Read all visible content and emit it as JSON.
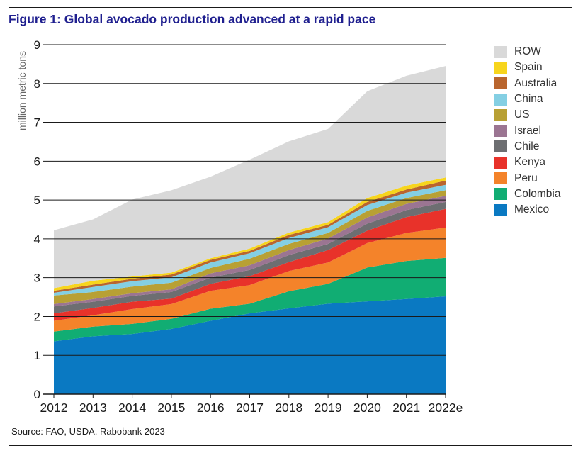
{
  "title": "Figure 1: Global avocado production advanced at a rapid pace",
  "source": "Source: FAO, USDA, Rabobank 2023",
  "chart_data": {
    "type": "area",
    "stacked": true,
    "ylabel": "million metric tons",
    "xlabel": "",
    "ylim": [
      0,
      9
    ],
    "yticks": [
      0,
      1,
      2,
      3,
      4,
      5,
      6,
      7,
      8,
      9
    ],
    "grid": "horizontal",
    "legend_position": "right",
    "x": [
      "2012",
      "2013",
      "2014",
      "2015",
      "2016",
      "2017",
      "2018",
      "2019",
      "2020",
      "2021",
      "2022e"
    ],
    "series": [
      {
        "name": "Mexico",
        "color": "#0a79c2",
        "values": [
          1.36,
          1.49,
          1.55,
          1.68,
          1.89,
          2.08,
          2.21,
          2.33,
          2.39,
          2.45,
          2.52
        ]
      },
      {
        "name": "Colombia",
        "color": "#11ad73",
        "values": [
          0.25,
          0.25,
          0.26,
          0.26,
          0.31,
          0.25,
          0.44,
          0.51,
          0.87,
          0.98,
          0.99
        ]
      },
      {
        "name": "Peru",
        "color": "#f4832a",
        "values": [
          0.28,
          0.29,
          0.38,
          0.38,
          0.46,
          0.48,
          0.52,
          0.55,
          0.63,
          0.72,
          0.78
        ]
      },
      {
        "name": "Kenya",
        "color": "#e8322a",
        "values": [
          0.19,
          0.19,
          0.19,
          0.14,
          0.18,
          0.23,
          0.23,
          0.32,
          0.32,
          0.41,
          0.48
        ]
      },
      {
        "name": "Chile",
        "color": "#6d6e71",
        "values": [
          0.18,
          0.16,
          0.15,
          0.17,
          0.16,
          0.16,
          0.18,
          0.16,
          0.18,
          0.18,
          0.18
        ]
      },
      {
        "name": "Israel",
        "color": "#9b7592",
        "values": [
          0.06,
          0.07,
          0.07,
          0.07,
          0.11,
          0.12,
          0.13,
          0.14,
          0.16,
          0.16,
          0.16
        ]
      },
      {
        "name": "US",
        "color": "#b8a034",
        "values": [
          0.22,
          0.18,
          0.17,
          0.17,
          0.14,
          0.17,
          0.16,
          0.14,
          0.17,
          0.15,
          0.14
        ]
      },
      {
        "name": "China",
        "color": "#84cfe3",
        "values": [
          0.07,
          0.13,
          0.14,
          0.14,
          0.14,
          0.14,
          0.15,
          0.15,
          0.15,
          0.14,
          0.14
        ]
      },
      {
        "name": "Australia",
        "color": "#b9652e",
        "values": [
          0.05,
          0.06,
          0.06,
          0.07,
          0.07,
          0.06,
          0.08,
          0.06,
          0.08,
          0.08,
          0.11
        ]
      },
      {
        "name": "Spain",
        "color": "#f7d51d",
        "values": [
          0.07,
          0.1,
          0.06,
          0.05,
          0.04,
          0.06,
          0.06,
          0.07,
          0.1,
          0.1,
          0.08
        ]
      },
      {
        "name": "ROW",
        "color": "#d9d9d9",
        "values": [
          1.49,
          1.58,
          1.98,
          2.12,
          2.1,
          2.29,
          2.35,
          2.4,
          2.75,
          2.83,
          2.87
        ]
      }
    ]
  }
}
